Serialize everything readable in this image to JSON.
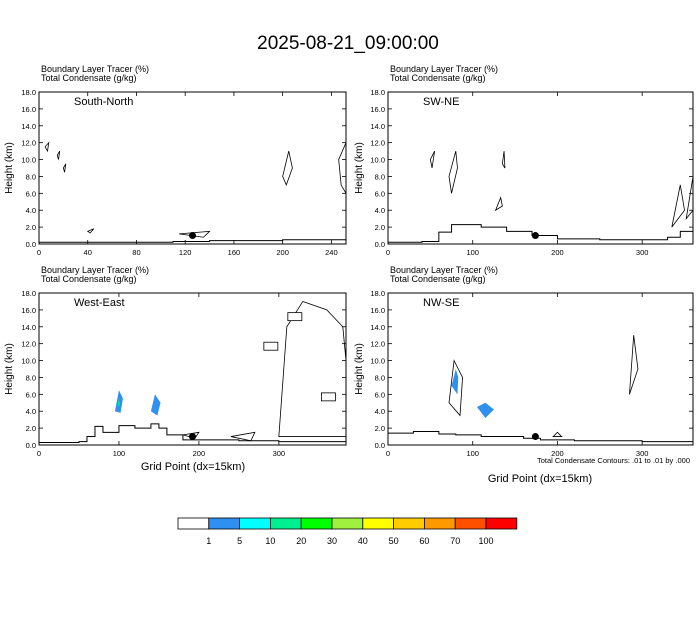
{
  "title": "2025-08-21_09:00:00",
  "panel_header": {
    "line1": "Boundary Layer Tracer   (%)",
    "line2": "Total Condensate   (g/kg)"
  },
  "ylabel": "Height (km)",
  "xlabel": "Grid Point (dx=15km)",
  "contour_note": "Total Condensate Contours: .01 to .01 by .000",
  "colorbar": {
    "colors": [
      "#ffffff",
      "#3090f0",
      "#00ffff",
      "#00f090",
      "#00ff00",
      "#a0f040",
      "#ffff00",
      "#ffcc00",
      "#ff9900",
      "#ff5000",
      "#ff0000"
    ],
    "labels": [
      "1",
      "5",
      "10",
      "20",
      "30",
      "40",
      "50",
      "60",
      "70",
      "100"
    ]
  },
  "chart_data": [
    {
      "type": "line",
      "name": "South-North",
      "ylim": [
        0,
        18
      ],
      "xlim": [
        0,
        252
      ],
      "yticks": [
        "0.0",
        "2.0",
        "4.0",
        "6.0",
        "8.0",
        "10.0",
        "12.0",
        "14.0",
        "16.0",
        "18.0"
      ],
      "xticks": [
        0,
        40,
        80,
        120,
        160,
        200,
        240
      ],
      "terrain": [
        [
          0,
          0.2
        ],
        [
          60,
          0.2
        ],
        [
          110,
          0.3
        ],
        [
          140,
          0.4
        ],
        [
          170,
          0.4
        ],
        [
          200,
          0.5
        ],
        [
          252,
          0.5
        ]
      ],
      "point": [
        126,
        1.0
      ],
      "clouds": [
        [
          [
            5,
            11.5
          ],
          [
            8,
            12
          ],
          [
            7,
            11
          ]
        ],
        [
          [
            15,
            10.5
          ],
          [
            17,
            11
          ],
          [
            16,
            10
          ]
        ],
        [
          [
            20,
            9
          ],
          [
            22,
            9.5
          ],
          [
            21,
            8.5
          ]
        ],
        [
          [
            200,
            8
          ],
          [
            205,
            11
          ],
          [
            208,
            9
          ],
          [
            203,
            7
          ]
        ],
        [
          [
            246,
            10
          ],
          [
            252,
            12
          ],
          [
            252,
            6
          ],
          [
            248,
            7
          ]
        ],
        [
          [
            40,
            1.5
          ],
          [
            45,
            1.8
          ],
          [
            42,
            1.3
          ]
        ],
        [
          [
            115,
            1.2
          ],
          [
            140,
            1.5
          ],
          [
            135,
            0.8
          ]
        ]
      ]
    },
    {
      "type": "line",
      "name": "SW-NE",
      "ylim": [
        0,
        18
      ],
      "xlim": [
        0,
        360
      ],
      "yticks": [
        "0.0",
        "2.0",
        "4.0",
        "6.0",
        "8.0",
        "10.0",
        "12.0",
        "14.0",
        "16.0",
        "18.0"
      ],
      "xticks": [
        0,
        100,
        200,
        300
      ],
      "terrain": [
        [
          0,
          0.2
        ],
        [
          40,
          0.3
        ],
        [
          60,
          1.4
        ],
        [
          75,
          2.3
        ],
        [
          110,
          2.0
        ],
        [
          140,
          1.5
        ],
        [
          170,
          1.0
        ],
        [
          200,
          0.6
        ],
        [
          250,
          0.5
        ],
        [
          300,
          0.5
        ],
        [
          330,
          0.8
        ],
        [
          345,
          1.5
        ],
        [
          360,
          1.8
        ]
      ],
      "point": [
        174,
        1.0
      ],
      "clouds": [
        [
          [
            50,
            10
          ],
          [
            55,
            11
          ],
          [
            52,
            9
          ]
        ],
        [
          [
            72,
            8
          ],
          [
            80,
            11
          ],
          [
            82,
            9
          ],
          [
            75,
            6
          ]
        ],
        [
          [
            135,
            9.5
          ],
          [
            137,
            11
          ],
          [
            138,
            9
          ]
        ],
        [
          [
            127,
            4
          ],
          [
            133,
            5.5
          ],
          [
            135,
            4.5
          ]
        ],
        [
          [
            335,
            2
          ],
          [
            345,
            7
          ],
          [
            350,
            4
          ]
        ],
        [
          [
            352,
            3
          ],
          [
            360,
            8
          ],
          [
            360,
            4
          ]
        ]
      ]
    },
    {
      "type": "line",
      "name": "West-East",
      "ylim": [
        0,
        18
      ],
      "xlim": [
        0,
        384
      ],
      "yticks": [
        "0.0",
        "2.0",
        "4.0",
        "6.0",
        "8.0",
        "10.0",
        "12.0",
        "14.0",
        "16.0",
        "18.0"
      ],
      "xticks": [
        0,
        100,
        200,
        300
      ],
      "terrain": [
        [
          0,
          0.3
        ],
        [
          50,
          0.4
        ],
        [
          60,
          1.0
        ],
        [
          70,
          2.2
        ],
        [
          80,
          1.5
        ],
        [
          100,
          2.3
        ],
        [
          120,
          2.0
        ],
        [
          140,
          2.5
        ],
        [
          150,
          2.0
        ],
        [
          160,
          1.2
        ],
        [
          180,
          0.6
        ],
        [
          250,
          0.5
        ],
        [
          300,
          0.4
        ],
        [
          384,
          0.5
        ]
      ],
      "point": [
        192,
        1.0
      ],
      "shaded": [
        {
          "color": "#3090f0",
          "pts": [
            [
              95,
              4
            ],
            [
              100,
              6.5
            ],
            [
              105,
              5.5
            ],
            [
              102,
              3.8
            ]
          ]
        },
        {
          "color": "#00f090",
          "pts": [
            [
              98,
              4.5
            ],
            [
              100,
              5.5
            ],
            [
              101,
              4.8
            ]
          ]
        },
        {
          "color": "#3090f0",
          "pts": [
            [
              140,
              4
            ],
            [
              145,
              6
            ],
            [
              152,
              5
            ],
            [
              148,
              3.5
            ]
          ]
        }
      ],
      "clouds": [
        [
          [
            300,
            1
          ],
          [
            310,
            14
          ],
          [
            330,
            17
          ],
          [
            360,
            16
          ],
          [
            380,
            14
          ],
          [
            384,
            10
          ],
          [
            384,
            1
          ]
        ],
        [
          [
            180,
            1.2
          ],
          [
            200,
            1.5
          ],
          [
            195,
            0.8
          ]
        ],
        [
          [
            240,
            1
          ],
          [
            270,
            1.5
          ],
          [
            265,
            0.5
          ]
        ]
      ],
      "boxes": [
        [
          320,
          15.2
        ],
        [
          290,
          11.7
        ],
        [
          362,
          5.7
        ]
      ]
    },
    {
      "type": "line",
      "name": "NW-SE",
      "ylim": [
        0,
        18
      ],
      "xlim": [
        0,
        360
      ],
      "yticks": [
        "0.0",
        "2.0",
        "4.0",
        "6.0",
        "8.0",
        "10.0",
        "12.0",
        "14.0",
        "16.0",
        "18.0"
      ],
      "xticks": [
        0,
        100,
        200,
        300
      ],
      "terrain": [
        [
          0,
          1.4
        ],
        [
          30,
          1.6
        ],
        [
          60,
          1.3
        ],
        [
          80,
          1.2
        ],
        [
          110,
          1.0
        ],
        [
          140,
          1.0
        ],
        [
          160,
          0.8
        ],
        [
          180,
          0.6
        ],
        [
          220,
          0.5
        ],
        [
          300,
          0.4
        ],
        [
          360,
          0.4
        ]
      ],
      "point": [
        174,
        1.0
      ],
      "shaded": [
        {
          "color": "#3090f0",
          "pts": [
            [
              75,
              7
            ],
            [
              80,
              9
            ],
            [
              83,
              8
            ],
            [
              82,
              6
            ]
          ]
        },
        {
          "color": "#3090f0",
          "pts": [
            [
              105,
              4.5
            ],
            [
              115,
              5
            ],
            [
              125,
              4.2
            ],
            [
              115,
              3.2
            ]
          ]
        }
      ],
      "clouds": [
        [
          [
            72,
            5
          ],
          [
            78,
            10
          ],
          [
            88,
            8
          ],
          [
            85,
            3.5
          ]
        ],
        [
          [
            285,
            6
          ],
          [
            290,
            13
          ],
          [
            295,
            9
          ]
        ],
        [
          [
            195,
            1
          ],
          [
            200,
            1.5
          ],
          [
            205,
            1
          ]
        ]
      ]
    }
  ]
}
